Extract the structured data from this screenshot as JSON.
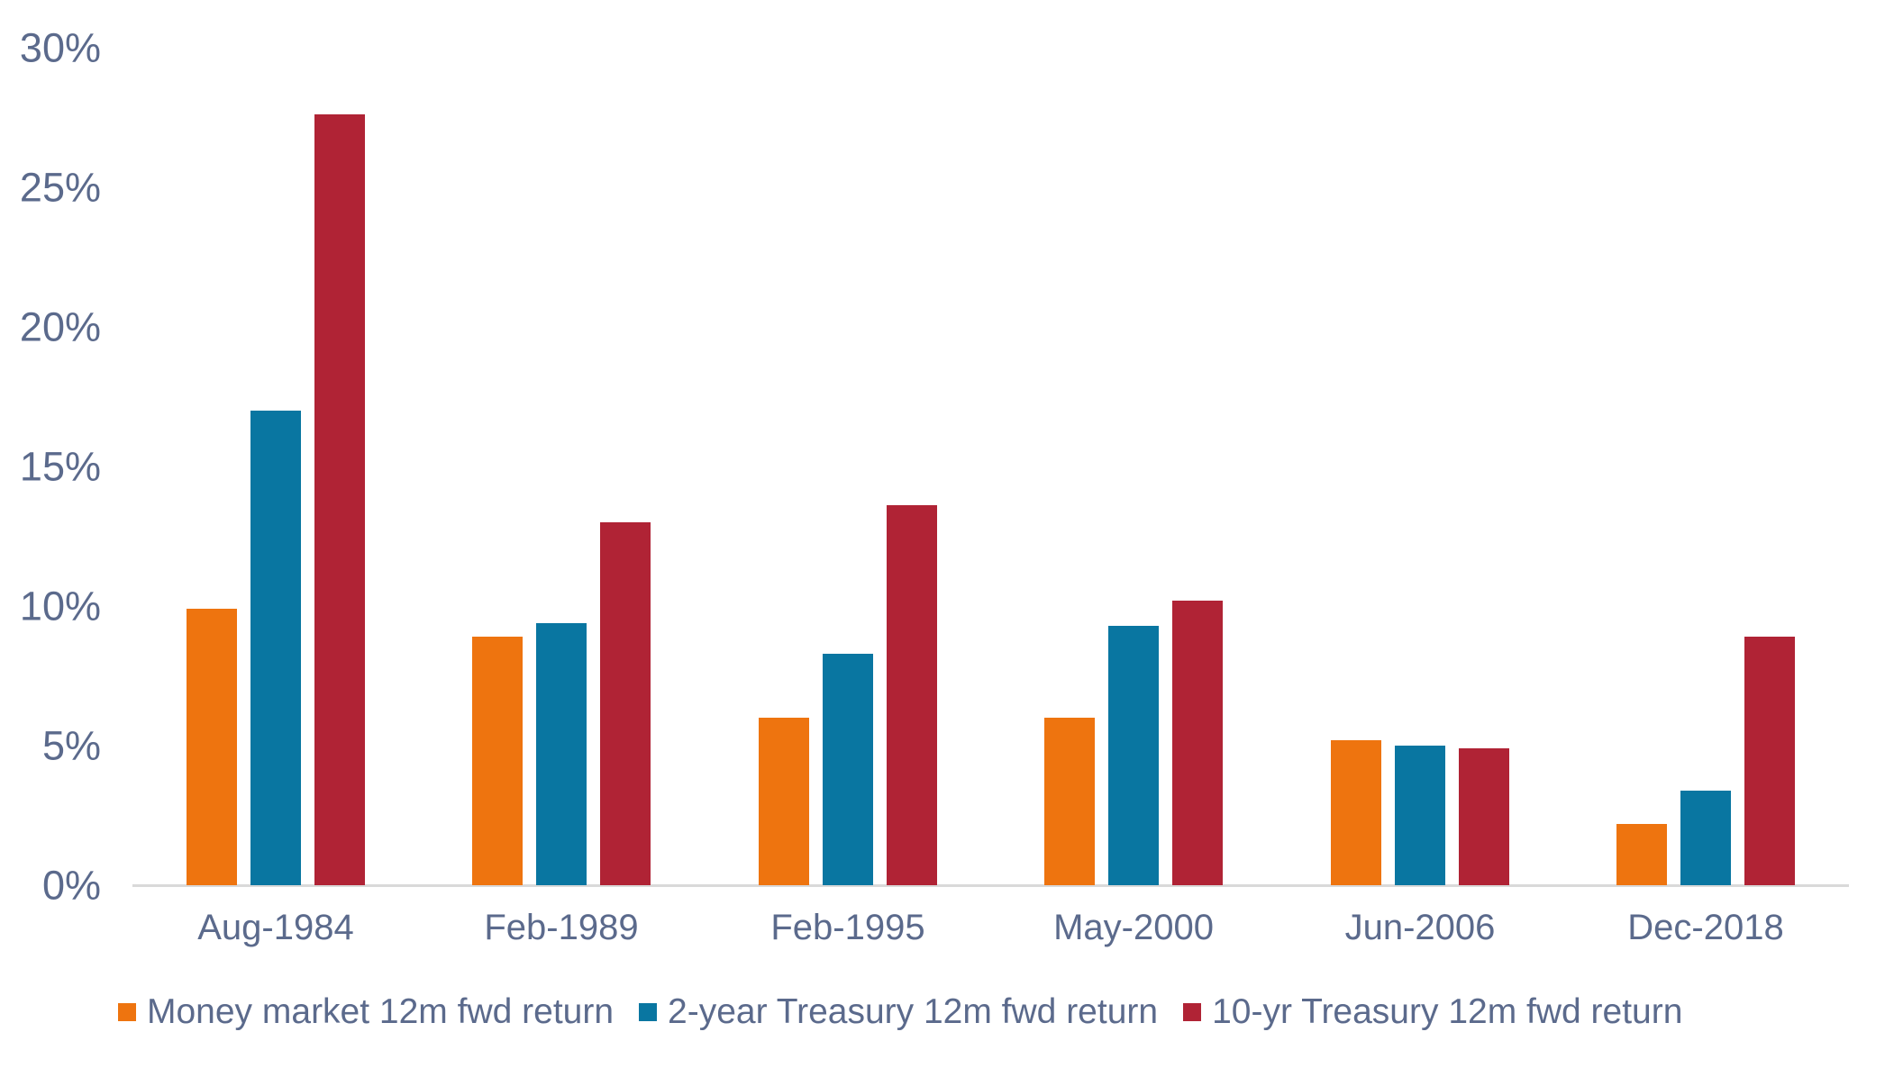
{
  "chart_data": {
    "type": "bar",
    "title": "",
    "xlabel": "",
    "ylabel": "",
    "categories": [
      "Aug-1984",
      "Feb-1989",
      "Feb-1995",
      "May-2000",
      "Jun-2006",
      "Dec-2018"
    ],
    "series": [
      {
        "name": "Money market 12m fwd return",
        "color": "#EE740F",
        "values": [
          9.9,
          8.9,
          6.0,
          6.0,
          5.2,
          2.2
        ]
      },
      {
        "name": "2-year Treasury 12m fwd return",
        "color": "#0976A1",
        "values": [
          17.0,
          9.4,
          8.3,
          9.3,
          5.0,
          3.4
        ]
      },
      {
        "name": "10-yr Treasury 12m fwd return",
        "color": "#B02335",
        "values": [
          27.6,
          13.0,
          13.6,
          10.2,
          4.9,
          8.9
        ]
      }
    ],
    "ylim": [
      0,
      30
    ],
    "ytick_step": 5,
    "ytick_labels": [
      "0%",
      "5%",
      "10%",
      "15%",
      "20%",
      "25%",
      "30%"
    ],
    "grid": false,
    "legend_position": "bottom"
  },
  "colors": {
    "text": "#5B6A8C",
    "axis_line": "#D9D9D9",
    "background": "#FFFFFF"
  }
}
